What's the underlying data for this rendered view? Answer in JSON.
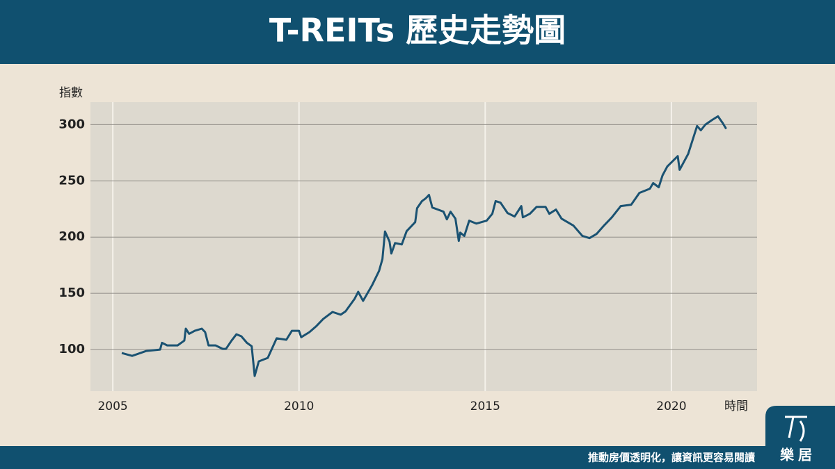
{
  "header": {
    "title": "T-REITs 歷史走勢圖"
  },
  "chart_data": {
    "type": "line",
    "y_label": "指數",
    "x_label": "時間",
    "color": "#1a5272",
    "x": [
      2005.24,
      2005.52,
      2005.9,
      2006.27,
      2006.32,
      2006.46,
      2006.74,
      2006.92,
      2006.96,
      2007.05,
      2007.2,
      2007.39,
      2007.48,
      2007.57,
      2007.76,
      2007.95,
      2008.04,
      2008.19,
      2008.32,
      2008.45,
      2008.6,
      2008.73,
      2008.81,
      2008.92,
      2009.16,
      2009.4,
      2009.66,
      2009.81,
      2010.0,
      2010.06,
      2010.28,
      2010.47,
      2010.65,
      2010.9,
      2011.12,
      2011.25,
      2011.49,
      2011.59,
      2011.72,
      2011.96,
      2012.15,
      2012.24,
      2012.31,
      2012.43,
      2012.48,
      2012.58,
      2012.76,
      2012.89,
      2013.12,
      2013.17,
      2013.3,
      2013.4,
      2013.49,
      2013.58,
      2013.73,
      2013.88,
      2013.97,
      2014.07,
      2014.2,
      2014.29,
      2014.33,
      2014.44,
      2014.57,
      2014.76,
      2015.04,
      2015.19,
      2015.28,
      2015.41,
      2015.6,
      2015.79,
      2015.97,
      2016.01,
      2016.2,
      2016.38,
      2016.62,
      2016.72,
      2016.9,
      2017.05,
      2017.37,
      2017.61,
      2017.8,
      2017.99,
      2018.17,
      2018.4,
      2018.64,
      2018.92,
      2019.14,
      2019.42,
      2019.51,
      2019.66,
      2019.76,
      2019.89,
      2020.17,
      2020.22,
      2020.45,
      2020.69,
      2020.79,
      2020.91,
      2021.1,
      2021.25,
      2021.38,
      2021.47
    ],
    "values": [
      96.9,
      94.4,
      98.8,
      100,
      106,
      103.7,
      103.7,
      108,
      118.6,
      114,
      116.7,
      118.6,
      115.5,
      103.7,
      103.7,
      100.6,
      100.6,
      108,
      113.6,
      111.8,
      106,
      103,
      76.5,
      89.5,
      92.6,
      110,
      108.7,
      116.7,
      116.7,
      111,
      115.5,
      121,
      127.2,
      133.4,
      131,
      134,
      145,
      151.4,
      143.3,
      157,
      170,
      180.5,
      205,
      196,
      185.4,
      194.7,
      193.5,
      205.3,
      213.3,
      225.7,
      231.9,
      234.4,
      237.5,
      226.3,
      224.5,
      222.6,
      215.8,
      222.6,
      216.4,
      196.6,
      204,
      201,
      214.6,
      212,
      214.6,
      220.7,
      232,
      230.6,
      221.4,
      218.3,
      227.6,
      217.6,
      220.7,
      226.9,
      226.9,
      220.7,
      224.5,
      216.4,
      210.2,
      201,
      199.1,
      202.8,
      209.6,
      217.6,
      227.6,
      228.8,
      239.3,
      243,
      248,
      244.3,
      254.8,
      262.8,
      272,
      259.8,
      274,
      298.8,
      295,
      300,
      304.3,
      307.4,
      301.2,
      296.3
    ],
    "xlim": [
      2004.4,
      2022.3
    ],
    "xticks": [
      2005,
      2010,
      2015,
      2020
    ],
    "ylim": [
      63,
      320
    ],
    "yticks": [
      100,
      150,
      200,
      250,
      300
    ],
    "grid": true
  },
  "footer": {
    "slogan": "推動房價透明化，讓資訊更容易閱讀",
    "logo": "樂居"
  }
}
